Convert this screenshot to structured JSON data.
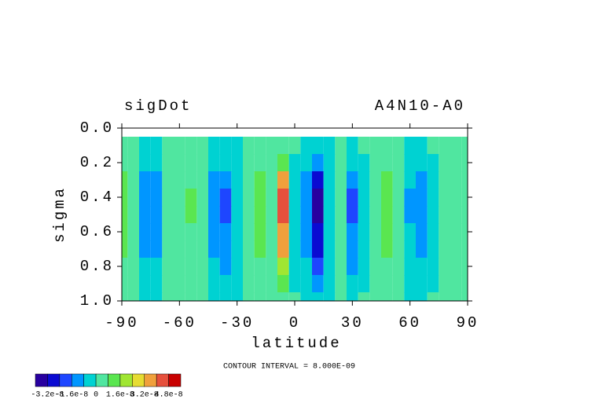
{
  "chart_data": {
    "type": "contour",
    "title": "sigDot",
    "subtitle": "A4N10-A0",
    "x_label": "latitude",
    "y_label": "sigma",
    "annotation": "CONTOUR INTERVAL = 8.000E-09",
    "x": [
      -90,
      -84,
      -78,
      -72,
      -66,
      -60,
      -54,
      -48,
      -42,
      -36,
      -30,
      -24,
      -18,
      -12,
      -6,
      0,
      6,
      12,
      18,
      24,
      30,
      36,
      42,
      48,
      54,
      60,
      66,
      72,
      78,
      84,
      90
    ],
    "y": [
      0.1,
      0.2,
      0.3,
      0.4,
      0.5,
      0.6,
      0.7,
      0.8,
      0.9,
      1.0
    ],
    "z": [
      [
        1e-09,
        0,
        -2e-09,
        -1e-09,
        0,
        1e-09,
        1e-09,
        0,
        -1e-09,
        -2e-09,
        -1e-09,
        1e-09,
        1e-09,
        0,
        4e-09,
        0,
        -2e-09,
        -3e-09,
        -1e-09,
        0,
        -2e-09,
        0,
        1e-09,
        1e-09,
        0,
        -1e-09,
        -1e-09,
        0,
        0,
        0,
        0
      ],
      [
        4e-09,
        1e-09,
        -5e-09,
        -4e-09,
        1e-09,
        2e-09,
        2e-09,
        1e-09,
        -4e-09,
        -6e-09,
        -2e-09,
        2e-09,
        3e-09,
        1e-09,
        1.3e-08,
        -1e-09,
        -5e-09,
        -1e-08,
        -2e-09,
        1e-09,
        -5e-09,
        -1e-09,
        2e-09,
        4e-09,
        1e-09,
        -3e-09,
        -4e-09,
        -1e-09,
        1e-09,
        1e-09,
        1e-09
      ],
      [
        1e-08,
        3e-09,
        -1.3e-08,
        -1e-08,
        2e-09,
        5e-09,
        6e-09,
        2e-09,
        -1e-08,
        -1.6e-08,
        -6e-09,
        5e-09,
        8e-09,
        3e-09,
        3.5e-08,
        -2e-09,
        -1.3e-08,
        -2.7e-08,
        -6e-09,
        3e-09,
        -1.4e-08,
        -2e-09,
        5e-09,
        1e-08,
        3e-09,
        -8e-09,
        -1.1e-08,
        -2e-09,
        2e-09,
        2e-09,
        2e-09
      ],
      [
        1.2e-08,
        4e-09,
        -1.6e-08,
        -1.2e-08,
        2e-09,
        6e-09,
        8e-09,
        2e-09,
        -1.2e-08,
        -2e-08,
        -8e-09,
        6e-09,
        1e-08,
        4e-09,
        4.4e-08,
        -2e-09,
        -1.6e-08,
        -3.4e-08,
        -8e-09,
        4e-09,
        -1.8e-08,
        -2e-09,
        6e-09,
        1.2e-08,
        4e-09,
        -1e-08,
        -1.4e-08,
        -2e-09,
        2e-09,
        2e-09,
        2e-09
      ],
      [
        1.2e-08,
        4e-09,
        -1.6e-08,
        -1.2e-08,
        2e-09,
        6e-09,
        8e-09,
        2e-09,
        -1.2e-08,
        -2e-08,
        -8e-09,
        6e-09,
        1e-08,
        4e-09,
        4.4e-08,
        -2e-09,
        -1.6e-08,
        -3.4e-08,
        -8e-09,
        4e-09,
        -1.8e-08,
        -2e-09,
        6e-09,
        1.2e-08,
        4e-09,
        -1e-08,
        -1.4e-08,
        -2e-09,
        2e-09,
        2e-09,
        2e-09
      ],
      [
        1e-08,
        3e-09,
        -1.3e-08,
        -1e-08,
        2e-09,
        5e-09,
        6e-09,
        2e-09,
        -1e-08,
        -1.6e-08,
        -6e-09,
        5e-09,
        8e-09,
        3e-09,
        3.5e-08,
        -2e-09,
        -1.3e-08,
        -2.7e-08,
        -6e-09,
        3e-09,
        -1.4e-08,
        -2e-09,
        5e-09,
        1e-08,
        3e-09,
        -8e-09,
        -1.1e-08,
        -2e-09,
        2e-09,
        2e-09,
        2e-09
      ],
      [
        1e-08,
        3e-09,
        -1.3e-08,
        -1e-08,
        2e-09,
        5e-09,
        6e-09,
        2e-09,
        -1e-08,
        -1.6e-08,
        -6e-09,
        5e-09,
        8e-09,
        3e-09,
        3.5e-08,
        -2e-09,
        -1.3e-08,
        -2.7e-08,
        -6e-09,
        3e-09,
        -1.4e-08,
        -2e-09,
        5e-09,
        1e-08,
        3e-09,
        -8e-09,
        -1.1e-08,
        -2e-09,
        2e-09,
        2e-09,
        2e-09
      ],
      [
        6e-09,
        2e-09,
        -8e-09,
        -6e-09,
        1e-09,
        3e-09,
        4e-09,
        1e-09,
        -6e-09,
        -1e-08,
        -4e-09,
        3e-09,
        5e-09,
        2e-09,
        2.2e-08,
        -1e-09,
        -8e-09,
        -1.7e-08,
        -4e-09,
        2e-09,
        -9e-09,
        -1e-09,
        3e-09,
        6e-09,
        2e-09,
        -5e-09,
        -7e-09,
        -1e-09,
        1e-09,
        1e-09,
        1e-09
      ],
      [
        4e-09,
        1e-09,
        -5e-09,
        -4e-09,
        1e-09,
        2e-09,
        2e-09,
        1e-09,
        -4e-09,
        -6e-09,
        -2e-09,
        2e-09,
        3e-09,
        1e-09,
        1.3e-08,
        -1e-09,
        -5e-09,
        -1e-08,
        -2e-09,
        1e-09,
        -5e-09,
        -1e-09,
        2e-09,
        4e-09,
        1e-09,
        -3e-09,
        -4e-09,
        -1e-09,
        1e-09,
        1e-09,
        1e-09
      ],
      [
        1e-09,
        0,
        -2e-09,
        -1e-09,
        0,
        1e-09,
        1e-09,
        0,
        -1e-09,
        -2e-09,
        -1e-09,
        1e-09,
        1e-09,
        0,
        4e-09,
        0,
        -2e-09,
        -3e-09,
        -1e-09,
        0,
        -2e-09,
        0,
        1e-09,
        1e-09,
        0,
        -1e-09,
        -1e-09,
        0,
        0,
        0,
        0
      ]
    ],
    "xlim": [
      -90,
      90
    ],
    "xticks": [
      -90,
      -60,
      -30,
      0,
      30,
      60,
      90
    ],
    "ylim": [
      0,
      1
    ],
    "y_inverted": true,
    "yticks": [
      {
        "value": 0,
        "label": "0.0"
      },
      0.2,
      0.4,
      0.6,
      0.8,
      {
        "value": 1,
        "label": "1.0"
      }
    ],
    "levels": [
      -4e-08,
      -3.2e-08,
      -2.4e-08,
      -1.6e-08,
      -8e-09,
      0,
      8e-09,
      1.6e-08,
      2.4e-08,
      3.2e-08,
      4e-08,
      4.8e-08,
      5.6e-08
    ],
    "colors": [
      "#2800a0",
      "#0a0ad2",
      "#1e46ff",
      "#0096ff",
      "#00d2d2",
      "#50e6a0",
      "#5ae650",
      "#a0e632",
      "#e6dc32",
      "#f0a03c",
      "#e6503c",
      "#c80000"
    ],
    "colorbar_ticks": [
      -3.2e-08,
      -1.6e-08,
      0,
      1.6e-08,
      3.2e-08,
      4.8e-08
    ]
  }
}
